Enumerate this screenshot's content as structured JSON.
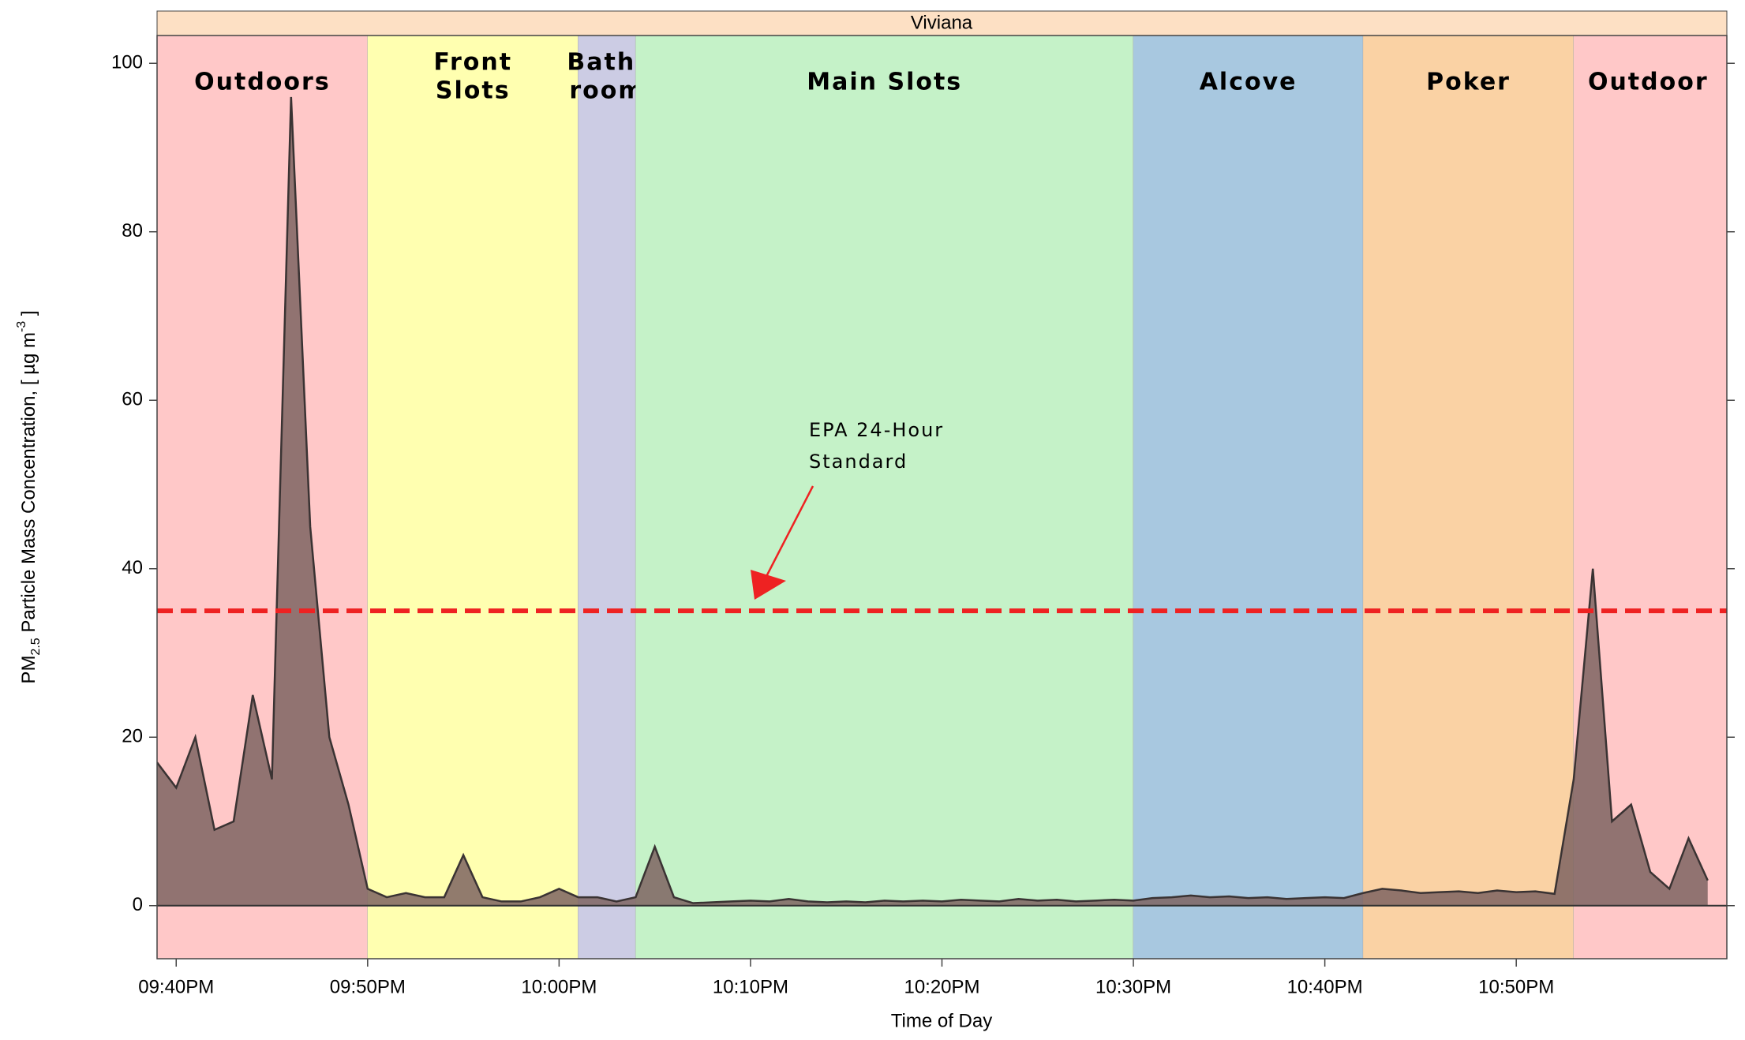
{
  "chart_data": {
    "type": "area",
    "strip_title": "Viviana",
    "x_label": "Time of Day",
    "y_label_parts": [
      "PM",
      "2.5",
      " Particle Mass Concentration, [ µg m",
      "-3",
      " ]"
    ],
    "xlim": [
      "21:39",
      "23:01"
    ],
    "xticks": [
      {
        "value": "21:40",
        "label": "09:40PM"
      },
      {
        "value": "21:50",
        "label": "09:50PM"
      },
      {
        "value": "22:00",
        "label": "10:00PM"
      },
      {
        "value": "22:10",
        "label": "10:10PM"
      },
      {
        "value": "22:20",
        "label": "10:20PM"
      },
      {
        "value": "22:30",
        "label": "10:30PM"
      },
      {
        "value": "22:40",
        "label": "10:40PM"
      },
      {
        "value": "22:50",
        "label": "10:50PM"
      }
    ],
    "ylim": [
      -6.3,
      103.3
    ],
    "yticks": [
      0,
      20,
      40,
      60,
      80,
      100
    ],
    "zones": [
      {
        "lines": [
          "Outdoors"
        ],
        "start": "21:39",
        "end": "21:50",
        "color": "#ffc8c8"
      },
      {
        "lines": [
          "Front",
          "Slots"
        ],
        "start": "21:50",
        "end": "22:01",
        "color": "#ffffb0"
      },
      {
        "lines": [
          "Bath-",
          "room"
        ],
        "start": "22:01",
        "end": "22:04",
        "color": "#cccce4"
      },
      {
        "lines": [
          "Main Slots"
        ],
        "start": "22:04",
        "end": "22:30",
        "color": "#c5f2c8"
      },
      {
        "lines": [
          "Alcove"
        ],
        "start": "22:30",
        "end": "22:42",
        "color": "#a8c8e0"
      },
      {
        "lines": [
          "Poker"
        ],
        "start": "22:42",
        "end": "22:53",
        "color": "#fad2a4"
      },
      {
        "lines": [
          "Outdoor"
        ],
        "start": "22:53",
        "end": "23:01",
        "color": "#ffc8c8"
      }
    ],
    "reference_line": {
      "value": 35,
      "color": "#ee2222",
      "annotation": [
        "EPA 24-Hour",
        "Standard"
      ]
    },
    "x": [
      "21:39",
      "21:40",
      "21:41",
      "21:42",
      "21:43",
      "21:44",
      "21:45",
      "21:46",
      "21:47",
      "21:48",
      "21:49",
      "21:50",
      "21:51",
      "21:52",
      "21:53",
      "21:54",
      "21:55",
      "21:56",
      "21:57",
      "21:58",
      "21:59",
      "22:00",
      "22:01",
      "22:02",
      "22:03",
      "22:04",
      "22:05",
      "22:06",
      "22:07",
      "22:08",
      "22:09",
      "22:10",
      "22:11",
      "22:12",
      "22:13",
      "22:14",
      "22:15",
      "22:16",
      "22:17",
      "22:18",
      "22:19",
      "22:20",
      "22:21",
      "22:22",
      "22:23",
      "22:24",
      "22:25",
      "22:26",
      "22:27",
      "22:28",
      "22:29",
      "22:30",
      "22:31",
      "22:32",
      "22:33",
      "22:34",
      "22:35",
      "22:36",
      "22:37",
      "22:38",
      "22:39",
      "22:40",
      "22:41",
      "22:42",
      "22:43",
      "22:44",
      "22:45",
      "22:46",
      "22:47",
      "22:48",
      "22:49",
      "22:50",
      "22:51",
      "22:52",
      "22:53",
      "22:54",
      "22:55",
      "22:56",
      "22:57",
      "22:58",
      "22:59",
      "23:00"
    ],
    "series": [
      {
        "name": "PM2.5",
        "color": "#7e6462",
        "values": [
          17,
          14,
          20,
          9,
          10,
          25,
          15,
          96,
          45,
          20,
          12,
          2,
          1,
          1.5,
          1,
          1,
          6,
          1,
          0.5,
          0.5,
          1,
          2,
          1,
          1,
          0.5,
          1,
          7,
          1,
          0.3,
          0.4,
          0.5,
          0.6,
          0.5,
          0.8,
          0.5,
          0.4,
          0.5,
          0.4,
          0.6,
          0.5,
          0.6,
          0.5,
          0.7,
          0.6,
          0.5,
          0.8,
          0.6,
          0.7,
          0.5,
          0.6,
          0.7,
          0.6,
          0.9,
          1,
          1.2,
          1,
          1.1,
          0.9,
          1,
          0.8,
          0.9,
          1,
          0.9,
          1.5,
          2,
          1.8,
          1.5,
          1.6,
          1.7,
          1.5,
          1.8,
          1.6,
          1.7,
          1.4,
          15,
          40,
          10,
          12,
          4,
          2,
          8,
          3
        ]
      }
    ]
  }
}
